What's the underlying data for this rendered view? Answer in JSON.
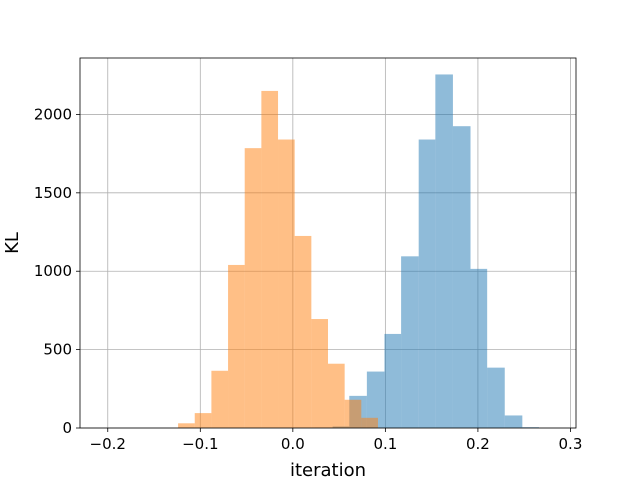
{
  "chart_data": {
    "type": "bar",
    "title": "",
    "xlabel": "iteration",
    "ylabel": "KL",
    "xlim": [
      -0.23,
      0.306
    ],
    "ylim": [
      0,
      2360
    ],
    "grid": true,
    "legend": "none",
    "x_ticks": [
      -0.2,
      -0.1,
      0.0,
      0.1,
      0.2,
      0.3
    ],
    "x_tick_labels": [
      "−0.2",
      "−0.1",
      "0.0",
      "0.1",
      "0.2",
      "0.3"
    ],
    "y_ticks": [
      0,
      500,
      1000,
      1500,
      2000
    ],
    "y_tick_labels": [
      "0",
      "500",
      "1000",
      "1500",
      "2000"
    ],
    "series": [
      {
        "color": "#1f77b4",
        "opacity": 0.5,
        "bins": [
          [
            0.024,
            0.043,
            2
          ],
          [
            0.043,
            0.061,
            10
          ],
          [
            0.061,
            0.08,
            205
          ],
          [
            0.08,
            0.099,
            360
          ],
          [
            0.099,
            0.117,
            600
          ],
          [
            0.117,
            0.136,
            1095
          ],
          [
            0.136,
            0.154,
            1840
          ],
          [
            0.154,
            0.173,
            2255
          ],
          [
            0.173,
            0.192,
            1925
          ],
          [
            0.192,
            0.21,
            1015
          ],
          [
            0.21,
            0.229,
            385
          ],
          [
            0.229,
            0.248,
            80
          ],
          [
            0.248,
            0.266,
            5
          ]
        ]
      },
      {
        "color": "#ff7f0e",
        "opacity": 0.5,
        "bins": [
          [
            -0.124,
            -0.106,
            30
          ],
          [
            -0.106,
            -0.088,
            95
          ],
          [
            -0.088,
            -0.07,
            365
          ],
          [
            -0.07,
            -0.052,
            1040
          ],
          [
            -0.052,
            -0.034,
            1785
          ],
          [
            -0.034,
            -0.016,
            2150
          ],
          [
            -0.016,
            0.002,
            1840
          ],
          [
            0.002,
            0.02,
            1225
          ],
          [
            0.02,
            0.038,
            695
          ],
          [
            0.038,
            0.056,
            410
          ],
          [
            0.056,
            0.074,
            180
          ],
          [
            0.074,
            0.092,
            65
          ]
        ]
      }
    ]
  }
}
